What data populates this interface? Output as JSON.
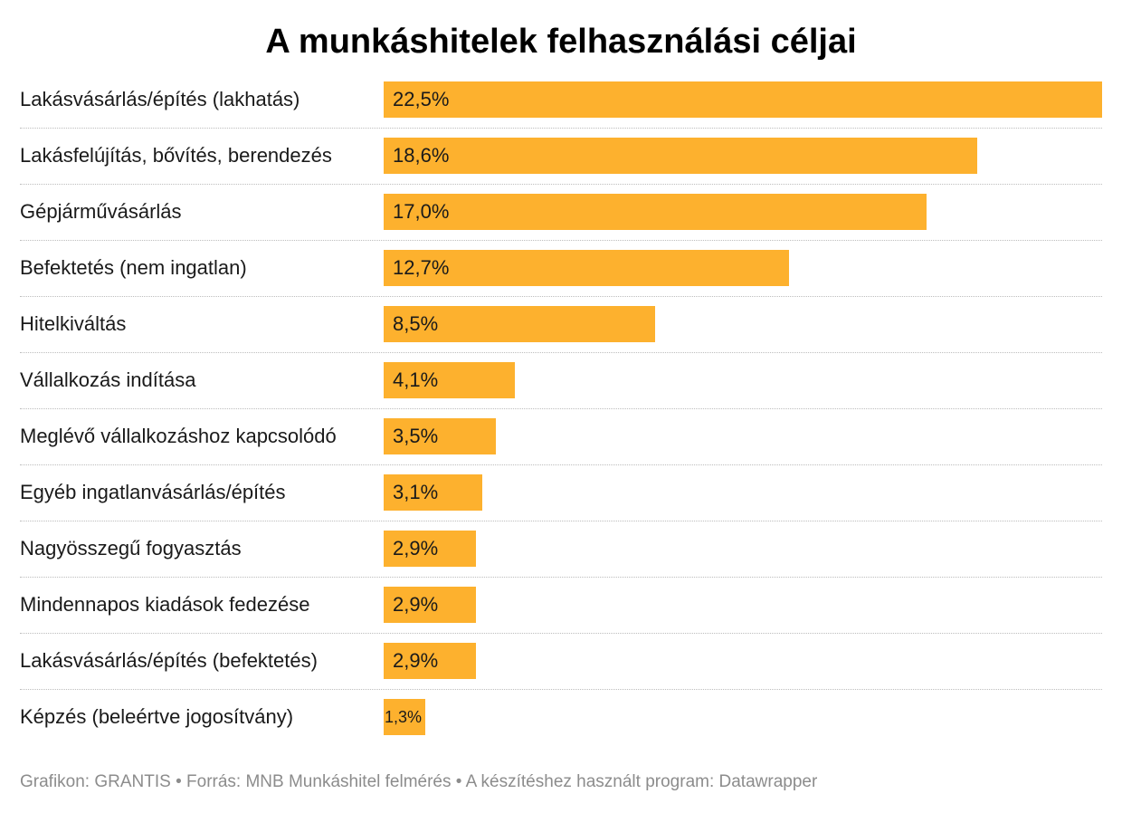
{
  "title": "A munkáshitelek felhasználási céljai",
  "footer": "Grafikon: GRANTIS • Forrás: MNB Munkáshitel felmérés • A készítéshez használt program: Datawrapper",
  "colors": {
    "bar": "#fdb12e",
    "separator": "#bdbdbd",
    "footer_text": "#8c8c8c"
  },
  "chart_data": {
    "type": "bar",
    "orientation": "horizontal",
    "title": "A munkáshitelek felhasználási céljai",
    "xlabel": "",
    "ylabel": "",
    "xlim": [
      0,
      22.5
    ],
    "categories": [
      "Lakásvásárlás/építés (lakhatás)",
      "Lakásfelújítás, bővítés, berendezés",
      "Gépjárművásárlás",
      "Befektetés (nem ingatlan)",
      "Hitelkiváltás",
      "Vállalkozás indítása",
      "Meglévő vállalkozáshoz kapcsolódó",
      "Egyéb ingatlanvásárlás/építés",
      "Nagyösszegű fogyasztás",
      "Mindennapos kiadások fedezése",
      "Lakásvásárlás/építés (befektetés)",
      "Képzés (beleértve jogosítvány)"
    ],
    "values": [
      22.5,
      18.6,
      17.0,
      12.7,
      8.5,
      4.1,
      3.5,
      3.1,
      2.9,
      2.9,
      2.9,
      1.3
    ],
    "value_labels": [
      "22,5%",
      "18,6%",
      "17,0%",
      "12,7%",
      "8,5%",
      "4,1%",
      "3,5%",
      "3,1%",
      "2,9%",
      "2,9%",
      "2,9%",
      "1,3%"
    ],
    "grid": false,
    "legend": "none"
  }
}
